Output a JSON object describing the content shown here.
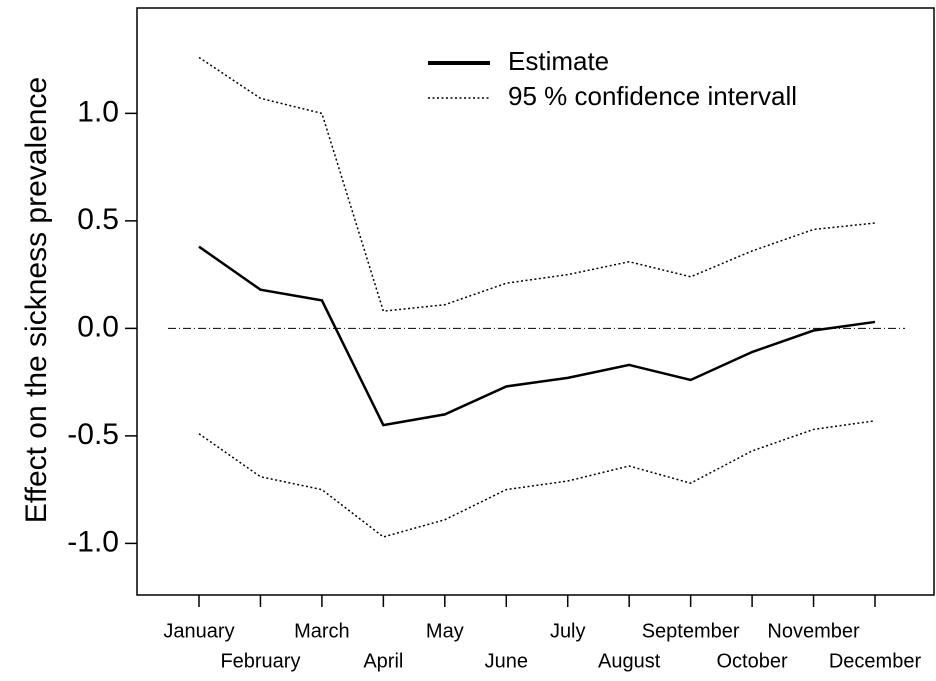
{
  "chart_data": {
    "type": "line",
    "y_label": "Effect on the sickness prevalence",
    "categories": [
      "January",
      "February",
      "March",
      "April",
      "May",
      "June",
      "July",
      "August",
      "September",
      "October",
      "November",
      "December"
    ],
    "series": [
      {
        "name": "Estimate",
        "color": "#000000",
        "style": "solid",
        "values": [
          0.38,
          0.18,
          0.13,
          -0.45,
          -0.4,
          -0.27,
          -0.23,
          -0.17,
          -0.24,
          -0.11,
          -0.01,
          0.03
        ]
      }
    ],
    "interval": {
      "name": "95 % confidence intervall",
      "color": "#000000",
      "style": "dotted",
      "upper": [
        1.26,
        1.07,
        1.0,
        0.08,
        0.11,
        0.21,
        0.25,
        0.31,
        0.24,
        0.36,
        0.46,
        0.49
      ],
      "lower": [
        -0.49,
        -0.69,
        -0.75,
        -0.97,
        -0.89,
        -0.75,
        -0.71,
        -0.64,
        -0.72,
        -0.57,
        -0.47,
        -0.43
      ]
    },
    "reference_line": 0,
    "ylim": [
      -1.24,
      1.49
    ],
    "yticks": [
      {
        "value": -1,
        "label": "-1.0"
      },
      -0.5,
      {
        "value": 0,
        "label": "0.0"
      },
      0.5,
      {
        "value": 1,
        "label": "1.0"
      }
    ]
  }
}
